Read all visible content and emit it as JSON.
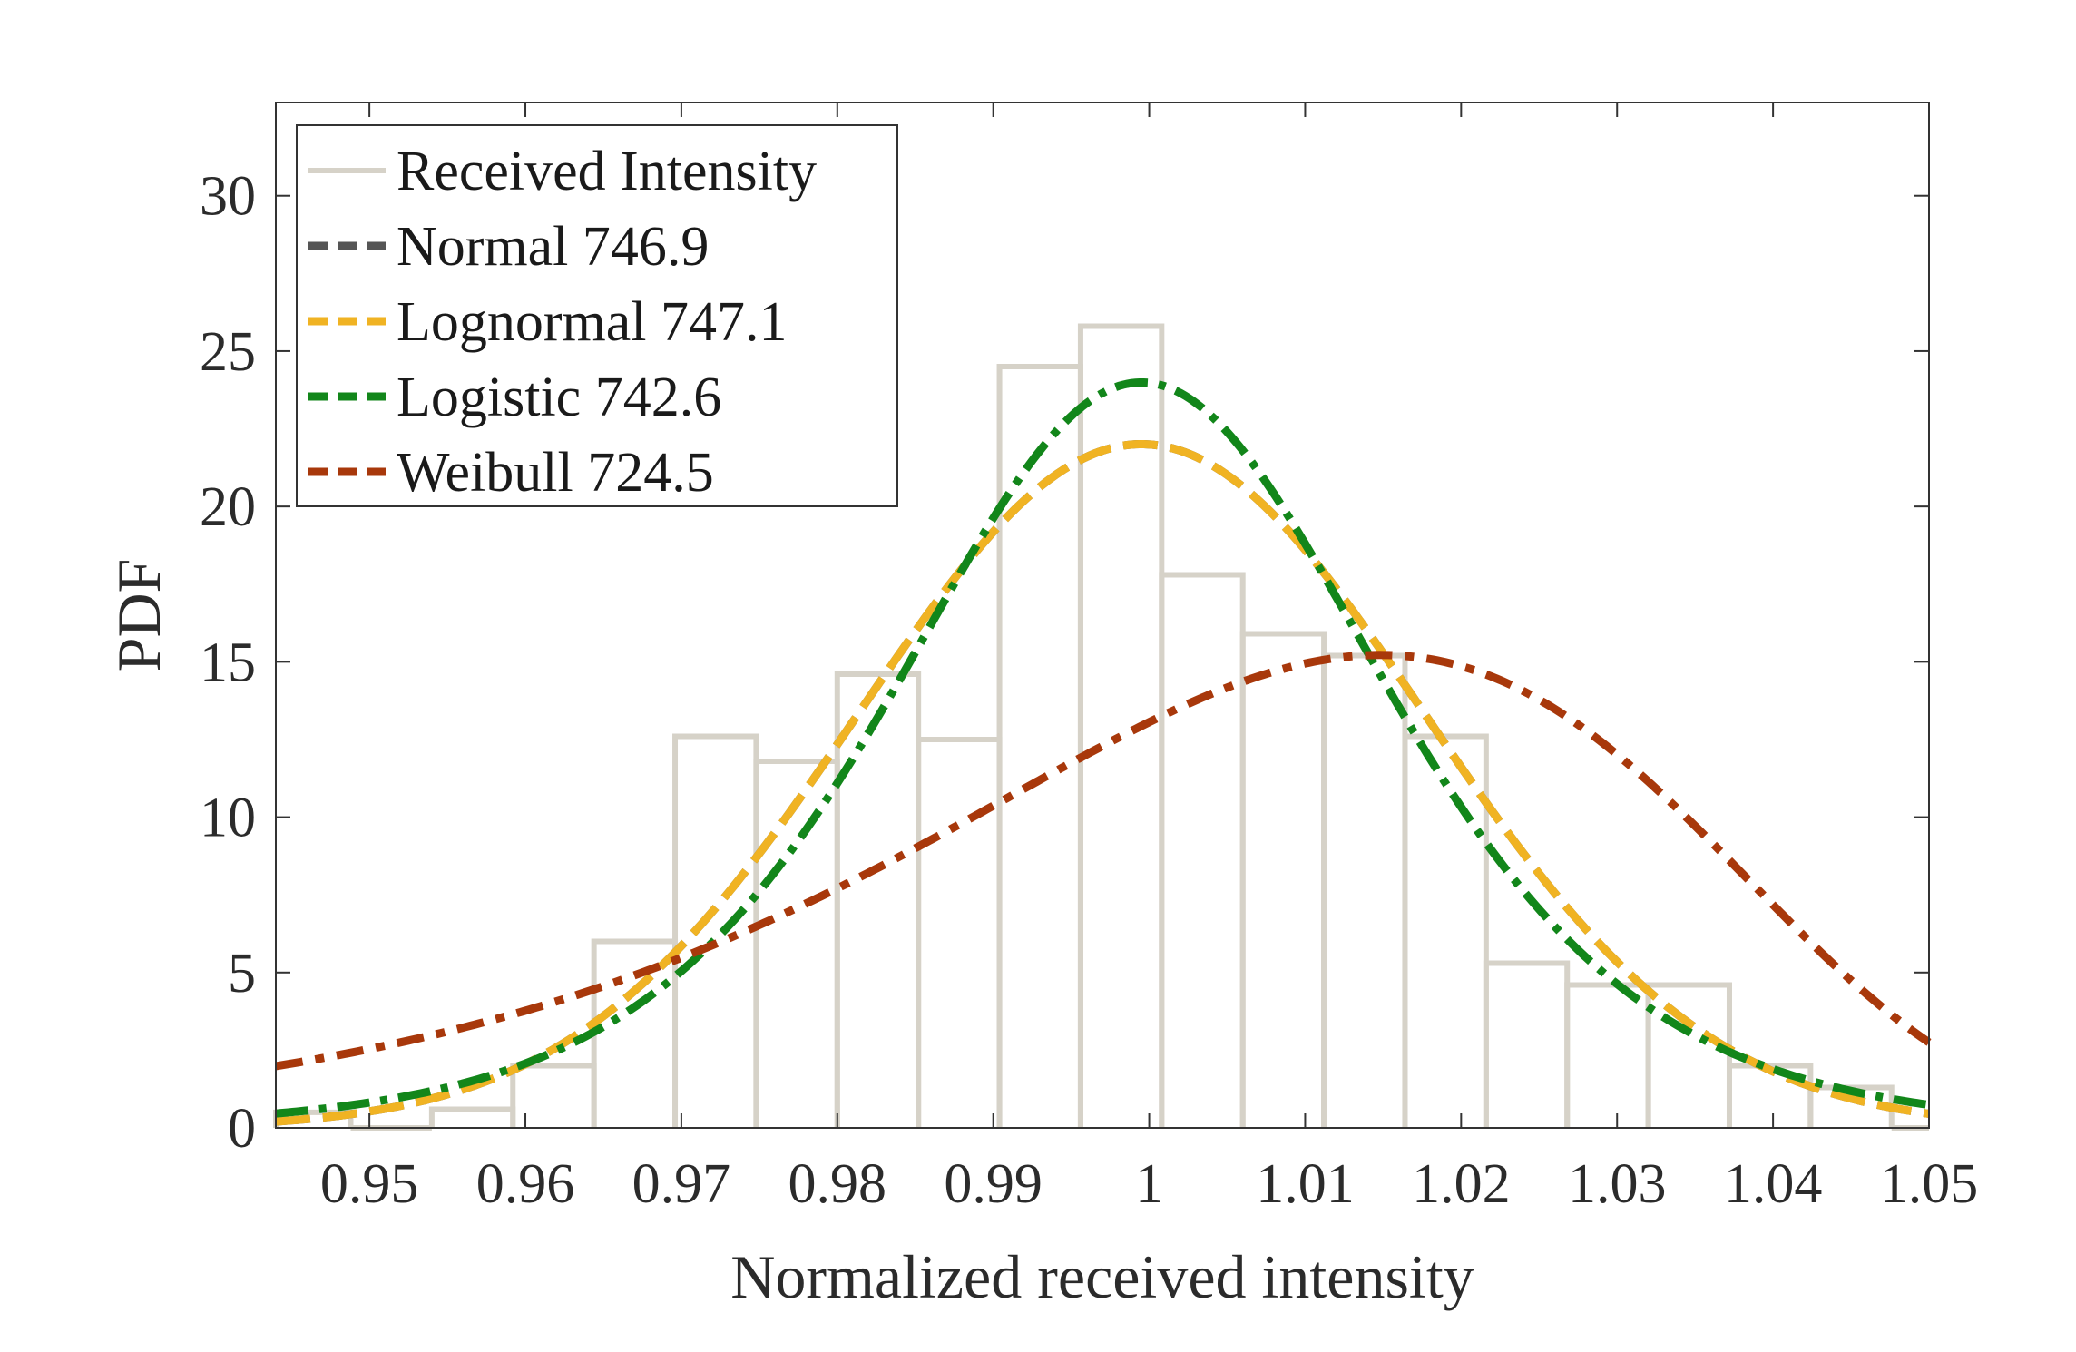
{
  "chart_data": {
    "type": "line",
    "xlabel": "Normalized received intensity",
    "ylabel": "PDF",
    "xlim": [
      0.944,
      1.05
    ],
    "ylim": [
      0,
      33
    ],
    "x_ticks": [
      0.95,
      0.96,
      0.97,
      0.98,
      0.99,
      1,
      1.01,
      1.02,
      1.03,
      1.04,
      1.05
    ],
    "x_tick_labels": [
      "0.95",
      "0.96",
      "0.97",
      "0.98",
      "0.99",
      "1",
      "1.01",
      "1.02",
      "1.03",
      "1.04",
      "1.05"
    ],
    "y_ticks": [
      0,
      5,
      10,
      15,
      20,
      25,
      30
    ],
    "y_tick_labels": [
      "0",
      "5",
      "10",
      "15",
      "20",
      "25",
      "30"
    ],
    "grid": false,
    "legend_position": "top-left",
    "histogram": {
      "name": "Received Intensity",
      "color": "#d6d2c8",
      "bin_edges": [
        0.9436,
        0.9488,
        0.954,
        0.9592,
        0.9644,
        0.9696,
        0.9748,
        0.98,
        0.9852,
        0.9904,
        0.9956,
        1.0008,
        1.006,
        1.0112,
        1.0164,
        1.0216,
        1.0268,
        1.032,
        1.0372,
        1.0424,
        1.0476,
        1.0528
      ],
      "heights": [
        0.5,
        0,
        0.6,
        2,
        6,
        12.6,
        11.8,
        14.6,
        12.5,
        24.5,
        25.8,
        17.8,
        15.9,
        15.2,
        12.6,
        5.3,
        4.6,
        4.6,
        2,
        1.3,
        0
      ]
    },
    "series": [
      {
        "name": "Normal 746.9",
        "color": "#555555",
        "dist": "normal",
        "mu": 0.9995,
        "sigma": 0.01813,
        "scale": 1
      },
      {
        "name": "Lognormal 747.1",
        "color": "#f0b323",
        "dist": "normal",
        "mu": 0.9995,
        "sigma": 0.01813,
        "scale": 1
      },
      {
        "name": "Logistic 742.6",
        "color": "#12861a",
        "dist": "logistic",
        "mu": 0.9995,
        "s": 0.01042,
        "scale": 1
      },
      {
        "name": "Weibull 724.5",
        "color": "#a8380b",
        "dist": "weibull",
        "lambda": 1.0154,
        "k": 42,
        "scale": 1
      }
    ]
  }
}
